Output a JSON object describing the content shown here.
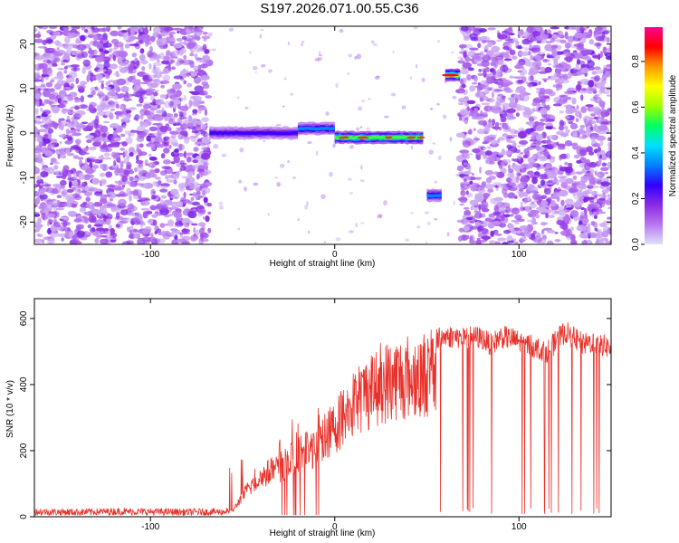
{
  "title": "S197.2026.071.00.55.C36",
  "chart_data": [
    {
      "type": "heatmap",
      "title": "",
      "xlabel": "Height of straight line (km)",
      "ylabel": "Frequency (Hz)",
      "xlim": [
        -163,
        150
      ],
      "ylim": [
        -25,
        24
      ],
      "xticks": [
        -100,
        0,
        100
      ],
      "yticks": [
        20,
        10,
        0,
        -10,
        -20
      ],
      "colorbar": {
        "label": "Normalized spectral amplitude",
        "range": [
          0,
          0.95
        ],
        "ticks": [
          0.0,
          0.2,
          0.4,
          0.6,
          0.8
        ],
        "colormap": [
          "#e0e0f8",
          "#b877f0",
          "#8a2be2",
          "#3000ff",
          "#0080ff",
          "#00e0ff",
          "#00ff60",
          "#a0ff00",
          "#ffff00",
          "#ff9900",
          "#ff0000",
          "#ff0090"
        ]
      },
      "noise_regions": [
        {
          "x_from": -163,
          "x_to": -68,
          "level": "scattered"
        },
        {
          "x_from": 68,
          "x_to": 150,
          "level": "scattered"
        }
      ],
      "signal_tracks": [
        {
          "x_from": -68,
          "x_to": -20,
          "freq_hz": 0,
          "amplitude": 0.25
        },
        {
          "x_from": -20,
          "x_to": 0,
          "freq_hz": 1,
          "amplitude": 0.35
        },
        {
          "x_from": 0,
          "x_to": 48,
          "freq_hz": -1,
          "amplitude": 0.55
        },
        {
          "x_from": 50,
          "x_to": 58,
          "freq_hz": -14,
          "amplitude": 0.35
        },
        {
          "x_from": 60,
          "x_to": 68,
          "freq_hz": 13,
          "amplitude": 0.6
        }
      ]
    },
    {
      "type": "line",
      "title": "",
      "xlabel": "Height of straight line (km)",
      "ylabel": "SNR (10 * v/v)",
      "xlim": [
        -163,
        150
      ],
      "ylim": [
        0,
        660
      ],
      "xticks": [
        -100,
        0,
        100
      ],
      "yticks": [
        0,
        200,
        400,
        600
      ],
      "series": [
        {
          "name": "SNR",
          "color": "#e8312a",
          "x": [
            -163,
            -140,
            -120,
            -100,
            -80,
            -60,
            -55,
            -50,
            -45,
            -40,
            -35,
            -30,
            -25,
            -20,
            -15,
            -10,
            -5,
            0,
            5,
            10,
            15,
            20,
            25,
            30,
            35,
            40,
            45,
            50,
            55,
            60,
            65,
            70,
            75,
            80,
            85,
            90,
            95,
            100,
            105,
            110,
            115,
            120,
            125,
            130,
            135,
            140,
            145,
            150
          ],
          "values": [
            15,
            14,
            16,
            15,
            14,
            15,
            25,
            80,
            120,
            150,
            170,
            185,
            210,
            230,
            250,
            270,
            300,
            340,
            380,
            420,
            455,
            480,
            500,
            515,
            525,
            530,
            535,
            540,
            540,
            545,
            545,
            540,
            545,
            540,
            520,
            545,
            540,
            530,
            520,
            510,
            500,
            530,
            560,
            540,
            520,
            530,
            520,
            510
          ]
        }
      ]
    }
  ]
}
